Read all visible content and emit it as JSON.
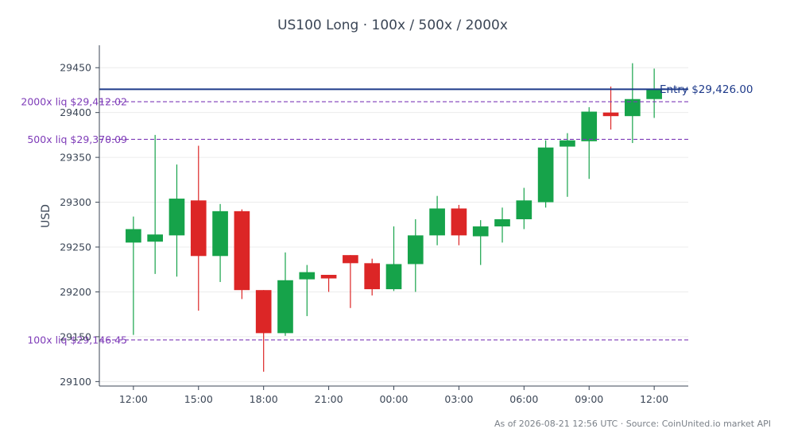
{
  "chart_data": {
    "type": "candlestick",
    "title": "US100 Long · 100x / 500x / 2000x",
    "ylabel": "USD",
    "xlabel": "",
    "ylim": [
      29095,
      29475
    ],
    "y_ticks": [
      29100,
      29150,
      29200,
      29250,
      29300,
      29350,
      29400,
      29450
    ],
    "y_tick_labels": [
      "29100",
      "29150",
      "29200",
      "29250",
      "29300",
      "29350",
      "29400",
      "29450"
    ],
    "x_ticks": [
      0,
      3,
      6,
      9,
      12,
      15,
      18,
      21,
      24
    ],
    "x_tick_labels": [
      "12:00",
      "15:00",
      "18:00",
      "21:00",
      "00:00",
      "03:00",
      "06:00",
      "09:00",
      "12:00"
    ],
    "xlim": [
      -1.57,
      25.57
    ],
    "grid": true,
    "colors": {
      "up": "#16a34a",
      "down": "#dc2626",
      "entry": "#1e3a8a",
      "liq": "#7e3bb8"
    },
    "candles": [
      {
        "o": 29255,
        "h": 29284,
        "l": 29152,
        "c": 29270
      },
      {
        "o": 29256,
        "h": 29375,
        "l": 29220,
        "c": 29264
      },
      {
        "o": 29263,
        "h": 29342,
        "l": 29217,
        "c": 29304
      },
      {
        "o": 29302,
        "h": 29363,
        "l": 29179,
        "c": 29240
      },
      {
        "o": 29240,
        "h": 29298,
        "l": 29211,
        "c": 29290
      },
      {
        "o": 29290,
        "h": 29292,
        "l": 29192,
        "c": 29202
      },
      {
        "o": 29202,
        "h": 29202,
        "l": 29111,
        "c": 29154
      },
      {
        "o": 29154,
        "h": 29244,
        "l": 29151,
        "c": 29213
      },
      {
        "o": 29214,
        "h": 29230,
        "l": 29173,
        "c": 29222
      },
      {
        "o": 29219,
        "h": 29219,
        "l": 29200,
        "c": 29215
      },
      {
        "o": 29241,
        "h": 29241,
        "l": 29182,
        "c": 29232
      },
      {
        "o": 29232,
        "h": 29237,
        "l": 29196,
        "c": 29203
      },
      {
        "o": 29203,
        "h": 29273,
        "l": 29201,
        "c": 29231
      },
      {
        "o": 29231,
        "h": 29281,
        "l": 29200,
        "c": 29263
      },
      {
        "o": 29263,
        "h": 29307,
        "l": 29252,
        "c": 29293
      },
      {
        "o": 29293,
        "h": 29297,
        "l": 29252,
        "c": 29263
      },
      {
        "o": 29262,
        "h": 29280,
        "l": 29230,
        "c": 29273
      },
      {
        "o": 29273,
        "h": 29294,
        "l": 29255,
        "c": 29281
      },
      {
        "o": 29281,
        "h": 29316,
        "l": 29270,
        "c": 29302
      },
      {
        "o": 29300,
        "h": 29369,
        "l": 29294,
        "c": 29361
      },
      {
        "o": 29362,
        "h": 29377,
        "l": 29306,
        "c": 29369
      },
      {
        "o": 29368,
        "h": 29406,
        "l": 29326,
        "c": 29401
      },
      {
        "o": 29400,
        "h": 29429,
        "l": 29381,
        "c": 29396
      },
      {
        "o": 29396,
        "h": 29455,
        "l": 29366,
        "c": 29415
      },
      {
        "o": 29415,
        "h": 29449,
        "l": 29394,
        "c": 29426
      }
    ],
    "hlines": [
      {
        "kind": "entry",
        "value": 29426.0,
        "label": "Entry $29,426.00"
      },
      {
        "kind": "liq",
        "value": 29412.02,
        "label": "2000x liq $29,412.02"
      },
      {
        "kind": "liq",
        "value": 29370.09,
        "label": "500x liq $29,370.09"
      },
      {
        "kind": "liq",
        "value": 29146.45,
        "label": "100x liq $29,146.45"
      }
    ]
  },
  "footer": "As of 2026-08-21 12:56 UTC · Source: CoinUnited.io market API"
}
